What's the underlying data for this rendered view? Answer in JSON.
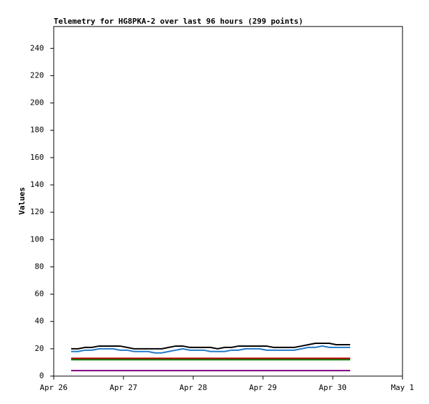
{
  "chart_data": {
    "type": "line",
    "title": "Telemetry for HG8PKA-2 over last 96 hours (299 points)",
    "y_label": "Values",
    "x": [
      0.25,
      0.35,
      0.45,
      0.55,
      0.65,
      0.75,
      0.85,
      0.95,
      1.05,
      1.15,
      1.25,
      1.35,
      1.45,
      1.55,
      1.65,
      1.75,
      1.85,
      1.95,
      2.05,
      2.15,
      2.25,
      2.35,
      2.45,
      2.55,
      2.65,
      2.75,
      2.85,
      2.95,
      3.05,
      3.15,
      3.25,
      3.35,
      3.45,
      3.55,
      3.65,
      3.75,
      3.85,
      3.95,
      4.05,
      4.15,
      4.25
    ],
    "series": [
      {
        "color": "#000000",
        "values": [
          20,
          20,
          21,
          21,
          22,
          22,
          22,
          22,
          21,
          20,
          20,
          20,
          20,
          20,
          21,
          22,
          22,
          21,
          21,
          21,
          21,
          20,
          21,
          21,
          22,
          22,
          22,
          22,
          22,
          21,
          21,
          21,
          21,
          22,
          23,
          24,
          24,
          24,
          23,
          23,
          23
        ]
      },
      {
        "color": "#1f78c8",
        "values": [
          18,
          18,
          19,
          19,
          20,
          20,
          20,
          19,
          19,
          18,
          18,
          18,
          17,
          17,
          18,
          19,
          20,
          19,
          19,
          19,
          18,
          18,
          18,
          19,
          19,
          20,
          20,
          20,
          19,
          19,
          19,
          19,
          19,
          20,
          21,
          21,
          22,
          21,
          21,
          21,
          21
        ]
      },
      {
        "color": "#c00000",
        "values": [
          13,
          13,
          13,
          13,
          13,
          13,
          13,
          13,
          13,
          13,
          13,
          13,
          13,
          13,
          13,
          13,
          13,
          13,
          13,
          13,
          13,
          13,
          13,
          13,
          13,
          13,
          13,
          13,
          13,
          13,
          13,
          13,
          13,
          13,
          13,
          13,
          13,
          13,
          13,
          13,
          13
        ]
      },
      {
        "color": "#008000",
        "values": [
          12,
          12,
          12,
          12,
          12,
          12,
          12,
          12,
          12,
          12,
          12,
          12,
          12,
          12,
          12,
          12,
          12,
          12,
          12,
          12,
          12,
          12,
          12,
          12,
          12,
          12,
          12,
          12,
          12,
          12,
          12,
          12,
          12,
          12,
          12,
          12,
          12,
          12,
          12,
          12,
          12
        ]
      },
      {
        "color": "#800080",
        "values": [
          4,
          4,
          4,
          4,
          4,
          4,
          4,
          4,
          4,
          4,
          4,
          4,
          4,
          4,
          4,
          4,
          4,
          4,
          4,
          4,
          4,
          4,
          4,
          4,
          4,
          4,
          4,
          4,
          4,
          4,
          4,
          4,
          4,
          4,
          4,
          4,
          4,
          4,
          4,
          4,
          4
        ]
      }
    ],
    "xlim": [
      0,
      5
    ],
    "xticks": [
      {
        "value": 0,
        "label": "Apr 26"
      },
      {
        "value": 1,
        "label": "Apr 27"
      },
      {
        "value": 2,
        "label": "Apr 28"
      },
      {
        "value": 3,
        "label": "Apr 29"
      },
      {
        "value": 4,
        "label": "Apr 30"
      },
      {
        "value": 5,
        "label": "May 1"
      }
    ],
    "ylim": [
      0,
      256
    ],
    "yticks": [
      0,
      20,
      40,
      60,
      80,
      100,
      120,
      140,
      160,
      180,
      200,
      220,
      240
    ]
  }
}
